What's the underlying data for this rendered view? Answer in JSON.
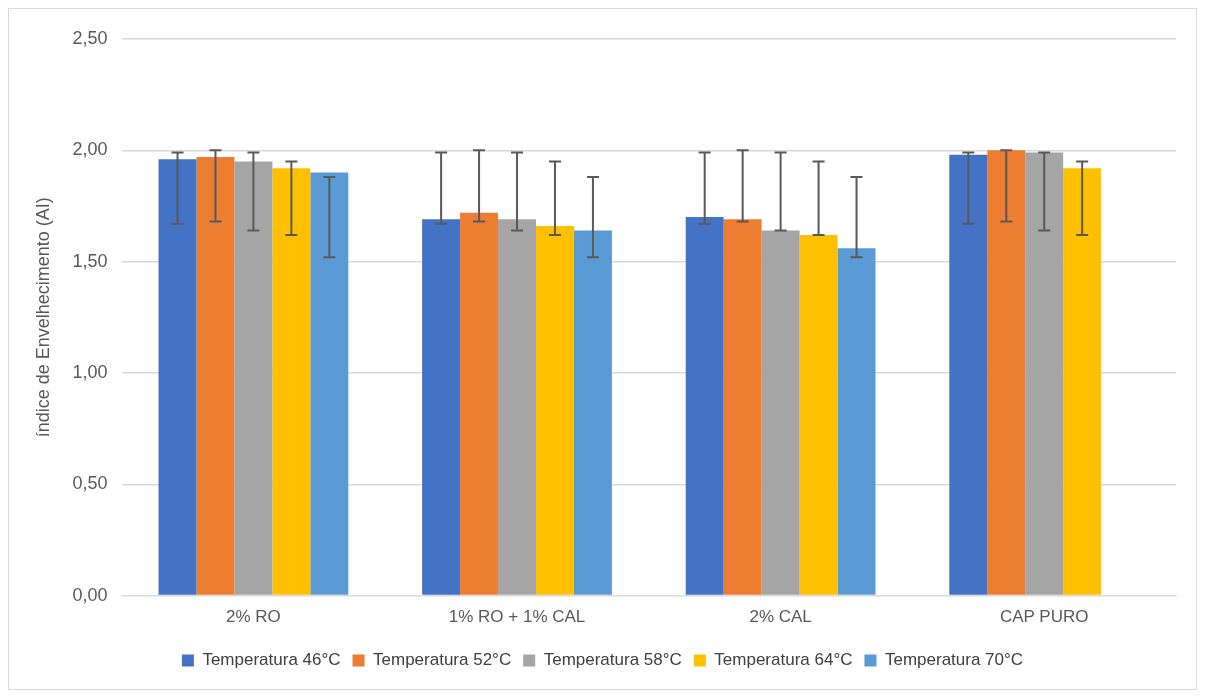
{
  "chart_data": {
    "type": "bar",
    "ylabel": "índice de Envelhecimento (AI)",
    "categories": [
      "2% RO",
      "1% RO + 1% CAL",
      "2% CAL",
      "CAP PURO"
    ],
    "series": [
      {
        "name": "Temperatura 46°C",
        "color": "#4472c4",
        "values": [
          1.96,
          1.69,
          1.7,
          1.98
        ],
        "errors": [
          [
            1.67,
            1.99
          ],
          [
            1.67,
            1.99
          ],
          [
            1.67,
            1.99
          ],
          [
            1.67,
            1.99
          ]
        ]
      },
      {
        "name": "Temperatura 52°C",
        "color": "#ed7d31",
        "values": [
          1.97,
          1.72,
          1.69,
          2.0
        ],
        "errors": [
          [
            1.68,
            2.0
          ],
          [
            1.68,
            2.0
          ],
          [
            1.68,
            2.0
          ],
          [
            1.68,
            2.0
          ]
        ]
      },
      {
        "name": "Temperatura 58°C",
        "color": "#a5a5a5",
        "values": [
          1.95,
          1.69,
          1.64,
          1.99
        ],
        "errors": [
          [
            1.64,
            1.99
          ],
          [
            1.64,
            1.99
          ],
          [
            1.64,
            1.99
          ],
          [
            1.64,
            1.99
          ]
        ]
      },
      {
        "name": "Temperatura 64°C",
        "color": "#ffc000",
        "values": [
          1.92,
          1.66,
          1.62,
          1.92
        ],
        "errors": [
          [
            1.62,
            1.95
          ],
          [
            1.62,
            1.95
          ],
          [
            1.62,
            1.95
          ],
          [
            1.62,
            1.95
          ]
        ]
      },
      {
        "name": "Temperatura 70°C",
        "color": "#5b9bd5",
        "values": [
          1.9,
          1.64,
          1.56,
          null
        ],
        "errors": [
          [
            1.52,
            1.88
          ],
          [
            1.52,
            1.88
          ],
          [
            1.52,
            1.88
          ],
          null
        ]
      }
    ],
    "ylim": [
      0,
      2.5
    ],
    "yticks": [
      {
        "value": 0,
        "label": "0,00"
      },
      {
        "value": 0.5,
        "label": "0,50"
      },
      {
        "value": 1,
        "label": "1,00"
      },
      {
        "value": 1.5,
        "label": "1,50"
      },
      {
        "value": 2,
        "label": "2,00"
      },
      {
        "value": 2.5,
        "label": "2,50"
      }
    ],
    "grid": "y",
    "legend": "bottom"
  }
}
